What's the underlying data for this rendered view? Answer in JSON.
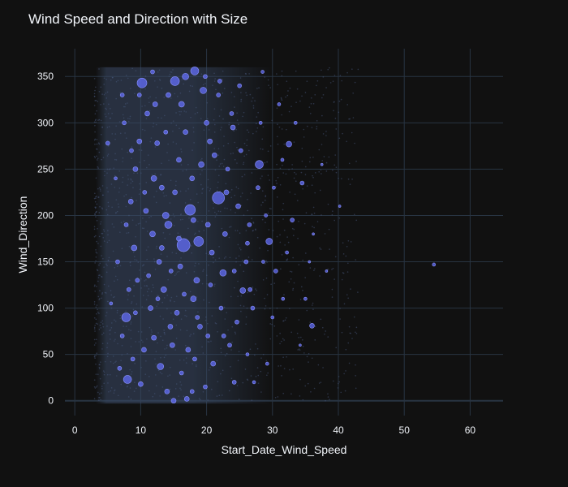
{
  "chart_data": {
    "type": "scatter",
    "title": "Wind Speed and Direction with Size",
    "xlabel": "Start_Date_Wind_Speed",
    "ylabel": "Wind_Direction",
    "xlim": [
      -1.5,
      65
    ],
    "ylim": [
      -16,
      380
    ],
    "x_ticks": [
      0,
      10,
      20,
      30,
      40,
      50,
      60
    ],
    "y_ticks": [
      0,
      50,
      100,
      150,
      200,
      250,
      300,
      350
    ],
    "grid": true,
    "legend": "none",
    "colors": {
      "background": "#111111",
      "grid": "#283442",
      "marker": "#636efa",
      "dense_band": "#3a4a66",
      "text": "#f2f5fa"
    },
    "series": [
      {
        "points": [
          [
            7.8,
            90,
            11
          ],
          [
            16.5,
            168,
            16
          ],
          [
            21.8,
            219,
            15
          ],
          [
            18.8,
            172,
            12
          ],
          [
            17.5,
            206,
            13
          ],
          [
            18.2,
            356,
            10
          ],
          [
            10.2,
            343,
            12
          ],
          [
            15.2,
            345,
            11
          ],
          [
            8,
            23,
            10
          ],
          [
            13,
            37,
            8
          ],
          [
            14.2,
            190,
            9
          ],
          [
            28,
            255,
            10
          ],
          [
            32.5,
            277,
            7
          ],
          [
            29.5,
            172,
            8
          ],
          [
            25.5,
            119,
            7
          ],
          [
            22.5,
            138,
            8
          ],
          [
            36,
            81,
            6
          ],
          [
            54.5,
            147,
            4
          ],
          [
            16.8,
            350,
            8
          ],
          [
            19.5,
            335,
            8
          ],
          [
            15,
            0,
            6
          ],
          [
            17,
            2,
            6
          ],
          [
            12,
            240,
            7
          ],
          [
            9,
            165,
            7
          ],
          [
            11,
            310,
            6
          ],
          [
            13.5,
            120,
            7
          ],
          [
            6.5,
            150,
            5
          ],
          [
            5,
            278,
            5
          ],
          [
            8.5,
            215,
            6
          ],
          [
            10.5,
            55,
            6
          ],
          [
            14.5,
            80,
            6
          ],
          [
            12.5,
            278,
            6
          ],
          [
            20.5,
            280,
            6
          ],
          [
            24,
            295,
            6
          ],
          [
            26.5,
            190,
            5
          ],
          [
            23,
            225,
            6
          ],
          [
            18,
            110,
            7
          ],
          [
            16,
            145,
            6
          ],
          [
            11.5,
            100,
            6
          ],
          [
            9.5,
            130,
            5
          ],
          [
            7.5,
            300,
            5
          ],
          [
            13.8,
            200,
            8
          ],
          [
            15.8,
            260,
            6
          ],
          [
            19,
            80,
            6
          ],
          [
            21,
            40,
            6
          ],
          [
            23.5,
            60,
            5
          ],
          [
            27,
            100,
            5
          ],
          [
            30.5,
            140,
            5
          ],
          [
            33,
            195,
            5
          ],
          [
            34.5,
            235,
            5
          ],
          [
            31,
            320,
            4
          ],
          [
            28.5,
            355,
            4
          ],
          [
            25,
            340,
            5
          ],
          [
            22,
            345,
            5
          ],
          [
            20,
            300,
            6
          ],
          [
            17.8,
            240,
            6
          ],
          [
            16.2,
            320,
            7
          ],
          [
            14,
            10,
            6
          ],
          [
            12,
            68,
            6
          ],
          [
            10,
            18,
            6
          ],
          [
            8.8,
            45,
            5
          ],
          [
            6.8,
            35,
            5
          ],
          [
            9.2,
            250,
            6
          ],
          [
            11.8,
            180,
            7
          ],
          [
            13.2,
            230,
            6
          ],
          [
            15.5,
            95,
            6
          ],
          [
            18.5,
            130,
            7
          ],
          [
            20.8,
            160,
            6
          ],
          [
            22.8,
            180,
            6
          ],
          [
            24.8,
            210,
            6
          ],
          [
            26,
            150,
            5
          ],
          [
            27.8,
            230,
            5
          ],
          [
            29,
            200,
            4
          ],
          [
            31.5,
            260,
            4
          ],
          [
            35,
            110,
            4
          ],
          [
            37.5,
            255,
            3
          ],
          [
            33.5,
            300,
            4
          ],
          [
            30,
            90,
            4
          ],
          [
            26.2,
            50,
            4
          ],
          [
            24.2,
            20,
            5
          ],
          [
            19.8,
            15,
            5
          ],
          [
            17.2,
            55,
            6
          ],
          [
            14.8,
            60,
            6
          ],
          [
            12.8,
            150,
            6
          ],
          [
            10.8,
            205,
            6
          ],
          [
            8.2,
            120,
            5
          ],
          [
            5.5,
            105,
            4
          ],
          [
            7.2,
            330,
            5
          ],
          [
            9.8,
            280,
            6
          ],
          [
            12.2,
            320,
            6
          ],
          [
            14.2,
            330,
            6
          ],
          [
            16.8,
            290,
            6
          ],
          [
            19.2,
            255,
            7
          ],
          [
            21.2,
            265,
            6
          ],
          [
            23.2,
            250,
            5
          ],
          [
            25.2,
            270,
            5
          ],
          [
            18,
            195,
            6
          ],
          [
            20.2,
            190,
            6
          ],
          [
            15.2,
            225,
            6
          ],
          [
            13.2,
            165,
            6
          ],
          [
            11.2,
            135,
            5
          ],
          [
            9.2,
            95,
            5
          ],
          [
            7.2,
            70,
            5
          ],
          [
            16.2,
            30,
            5
          ],
          [
            18.2,
            45,
            5
          ],
          [
            20.2,
            70,
            5
          ],
          [
            22.2,
            100,
            5
          ],
          [
            24.2,
            140,
            5
          ],
          [
            26.2,
            170,
            5
          ],
          [
            28.2,
            300,
            4
          ],
          [
            30.2,
            230,
            4
          ],
          [
            32.2,
            160,
            4
          ],
          [
            34.2,
            60,
            3
          ],
          [
            36.2,
            180,
            3
          ],
          [
            38.2,
            140,
            3
          ],
          [
            40.2,
            210,
            3
          ],
          [
            27.2,
            20,
            4
          ],
          [
            29.2,
            40,
            4
          ],
          [
            23.8,
            310,
            5
          ],
          [
            21.8,
            330,
            5
          ],
          [
            19.8,
            350,
            5
          ],
          [
            17.8,
            10,
            5
          ],
          [
            15.8,
            175,
            6
          ],
          [
            13.8,
            290,
            5
          ],
          [
            11.8,
            355,
            5
          ],
          [
            9.8,
            330,
            5
          ],
          [
            7.8,
            190,
            5
          ],
          [
            6.2,
            240,
            4
          ],
          [
            8.6,
            270,
            5
          ],
          [
            10.6,
            225,
            5
          ],
          [
            12.6,
            110,
            5
          ],
          [
            14.6,
            140,
            5
          ],
          [
            16.6,
            115,
            5
          ],
          [
            18.6,
            90,
            5
          ],
          [
            20.6,
            125,
            5
          ],
          [
            22.6,
            70,
            5
          ],
          [
            24.6,
            85,
            5
          ],
          [
            26.6,
            120,
            5
          ],
          [
            28.6,
            150,
            4
          ],
          [
            31.6,
            110,
            4
          ],
          [
            35.6,
            150,
            3
          ]
        ]
      }
    ]
  }
}
